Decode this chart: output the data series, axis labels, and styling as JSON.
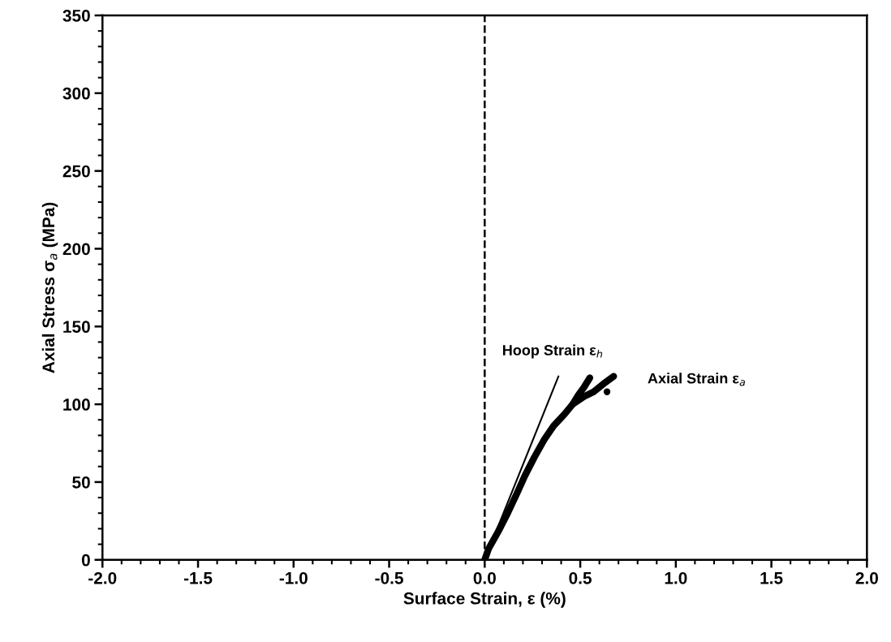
{
  "chart_data": {
    "type": "line",
    "xlabel": "Surface Strain, ε (%)",
    "ylabel": "Axial Stress σ$_{a}$ (MPa)",
    "xlim": [
      -2.0,
      2.0
    ],
    "ylim": [
      0,
      350
    ],
    "xticks": [
      {
        "value": -2.0,
        "label": "-2.0"
      },
      {
        "value": -1.5,
        "label": "-1.5"
      },
      {
        "value": -1.0,
        "label": "-1.0"
      },
      {
        "value": -0.5,
        "label": "-0.5"
      },
      {
        "value": 0.0,
        "label": "0.0"
      },
      {
        "value": 0.5,
        "label": "0.5"
      },
      {
        "value": 1.0,
        "label": "1.0"
      },
      {
        "value": 1.5,
        "label": "1.5"
      },
      {
        "value": 2.0,
        "label": "2.0"
      }
    ],
    "yticks": [
      0,
      50,
      100,
      150,
      200,
      250,
      300,
      350
    ],
    "grid": false,
    "legend": false,
    "series": [
      {
        "color": "#000000",
        "x": [
          0.0,
          0.386
        ],
        "values": [
          0,
          118
        ]
      },
      {
        "color": "#000000",
        "x": [
          0.0,
          0.02,
          0.07,
          0.12,
          0.17,
          0.21,
          0.26,
          0.31,
          0.36,
          0.42,
          0.46,
          0.49,
          0.52,
          0.55
        ],
        "values": [
          0,
          7,
          18,
          30,
          43,
          54,
          66,
          77,
          86,
          94,
          100,
          106,
          111,
          117
        ]
      },
      {
        "color": "#000000",
        "x": [
          0.46,
          0.52,
          0.57,
          0.62,
          0.675
        ],
        "values": [
          100,
          105,
          108,
          113,
          118
        ]
      },
      {
        "type": "scatter",
        "color": "#000000",
        "x": [
          0.64
        ],
        "values": [
          108
        ]
      }
    ],
    "ref_lines": [
      {
        "axis": "x",
        "value": 0.0,
        "line_style": "dashed",
        "color": "#000000"
      }
    ],
    "annotations": [
      "Hoop Strain ε$_{h}$",
      "Axial Strain ε$_{a}$"
    ]
  }
}
